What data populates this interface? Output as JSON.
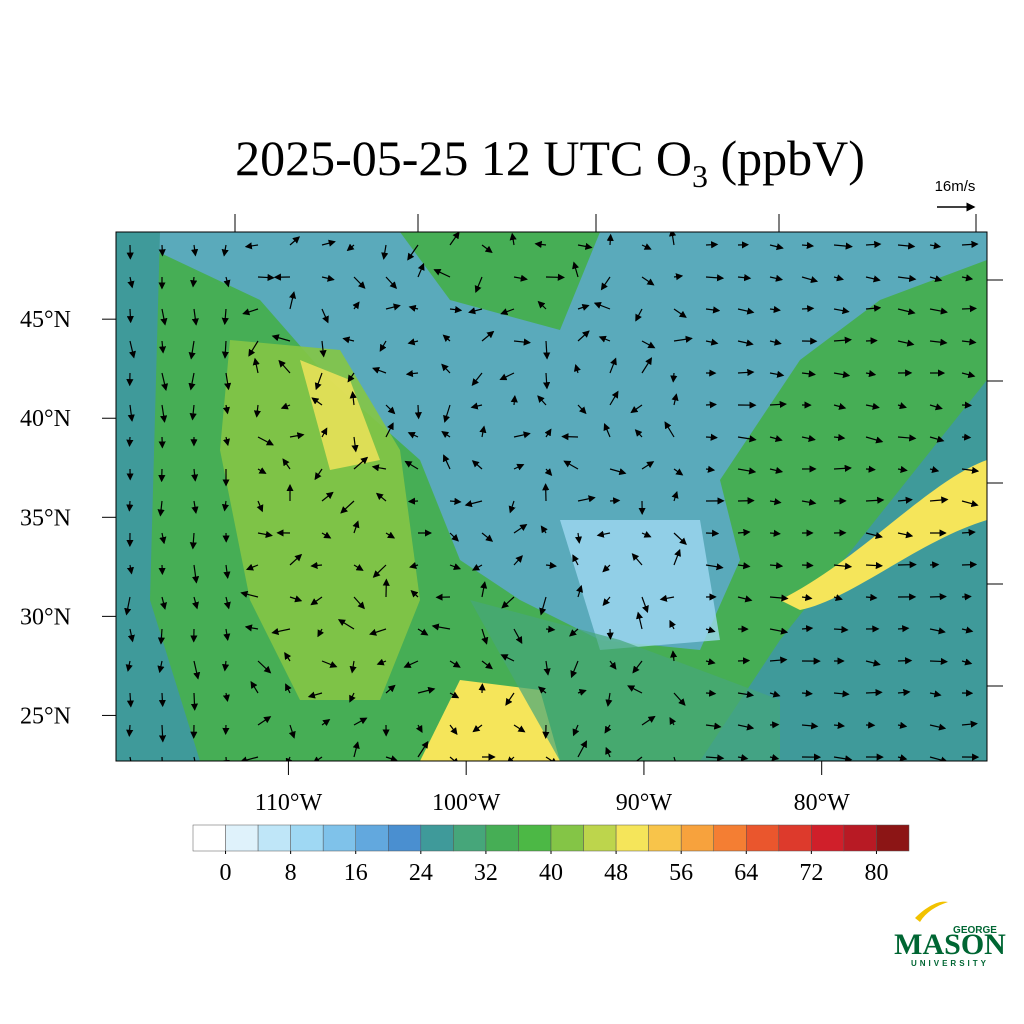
{
  "chart_data": {
    "type": "map",
    "title": [
      "2025-05-25 12 UTC O",
      "3",
      " (ppbV)"
    ],
    "vector_reference": "16m/s",
    "xlim": [
      -119.7,
      -70.7
    ],
    "ylim": [
      22.7,
      49.4
    ],
    "xticks": [
      {
        "value": -110,
        "label": "110°W"
      },
      {
        "value": -100,
        "label": "100°W"
      },
      {
        "value": -90,
        "label": "90°W"
      },
      {
        "value": -80,
        "label": "80°W"
      }
    ],
    "yticks": [
      {
        "value": 25,
        "label": "25°N"
      },
      {
        "value": 30,
        "label": "30°N"
      },
      {
        "value": 35,
        "label": "35°N"
      },
      {
        "value": 40,
        "label": "40°N"
      },
      {
        "value": 45,
        "label": "45°N"
      }
    ],
    "colorbar": {
      "clim": [
        -4,
        84
      ],
      "ticks": [
        0,
        8,
        16,
        24,
        32,
        40,
        48,
        56,
        64,
        72,
        80
      ],
      "colors": [
        "#ffffff",
        "#dff2fb",
        "#bfe6f8",
        "#9fd8f3",
        "#7fc2ea",
        "#62a8de",
        "#4a8fd0",
        "#3f9a9a",
        "#46a67a",
        "#46ae55",
        "#4cb845",
        "#84c546",
        "#bdd54c",
        "#f5e55a",
        "#f8c44a",
        "#f7a23d",
        "#f47e33",
        "#ea562d",
        "#dd3a2c",
        "#d01f2a",
        "#b81a24",
        "#8c1515"
      ]
    },
    "logo": [
      "GEORGE",
      "MASON",
      "UNIVERSITY"
    ]
  }
}
